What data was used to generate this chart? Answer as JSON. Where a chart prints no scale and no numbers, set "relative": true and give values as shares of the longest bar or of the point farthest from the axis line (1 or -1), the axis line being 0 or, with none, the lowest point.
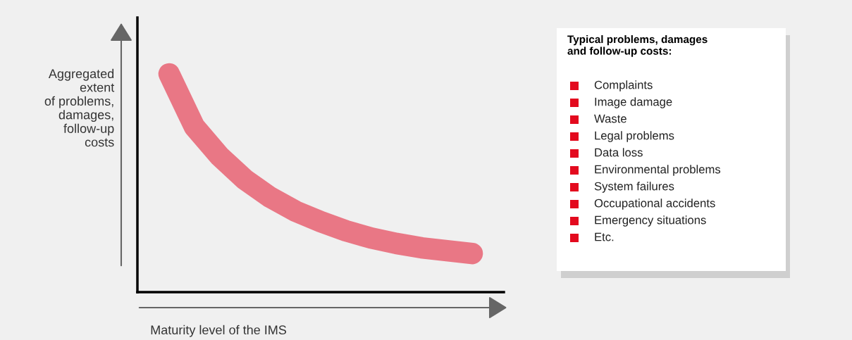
{
  "chart_data": [
    {
      "type": "line",
      "relative": true,
      "tick_labels": false,
      "ylabel": "Aggregated\nextent\nof problems,\ndamages,\nfollow-up\ncosts",
      "xlabel": "Maturity level of the IMS",
      "categories": [
        null,
        null,
        null,
        null,
        null,
        null,
        null,
        null,
        null,
        null,
        null,
        null,
        null
      ],
      "series": [
        {
          "color": "#e4142e",
          "values": [
            1.0,
            0.758,
            0.623,
            0.516,
            0.435,
            0.371,
            0.323,
            0.281,
            0.248,
            0.223,
            0.203,
            0.19,
            0.177
          ]
        }
      ]
    },
    {
      "type": "other",
      "title": "Typical problems, damages\nand follow-up costs:",
      "color": "#e30a1e",
      "annotations": [
        "Complaints",
        "Image damage",
        "Waste",
        "Legal problems",
        "Data loss",
        "Environmental problems",
        "System failures",
        "Occupational accidents",
        "Emergency situations",
        "Etc."
      ]
    }
  ]
}
